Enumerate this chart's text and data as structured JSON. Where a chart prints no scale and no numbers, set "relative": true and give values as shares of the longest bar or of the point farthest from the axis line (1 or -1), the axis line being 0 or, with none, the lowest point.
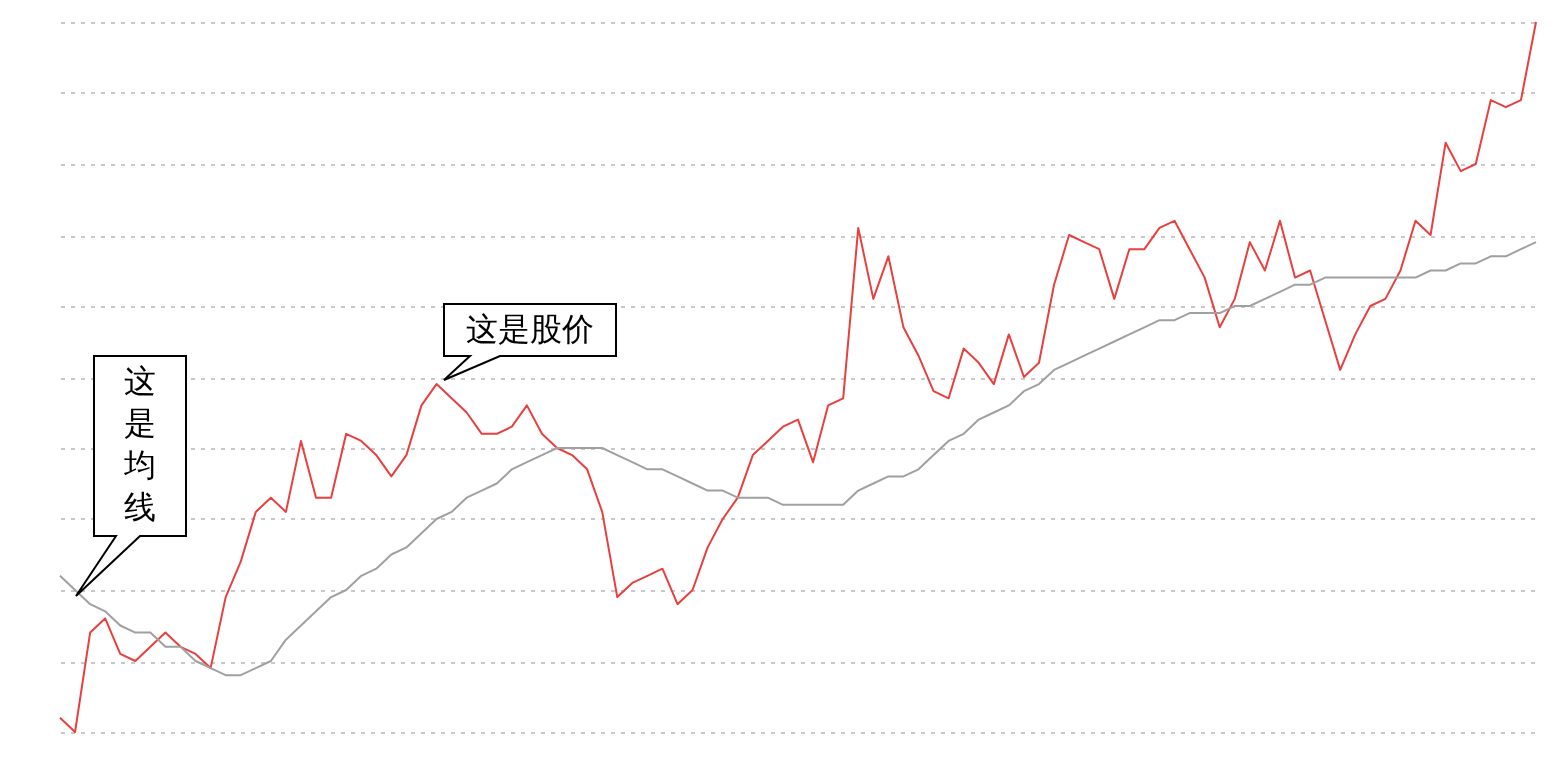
{
  "chart_data": {
    "type": "line",
    "relative": true,
    "grid": "y",
    "line_style": "solid",
    "categories": [
      null,
      null,
      null,
      null,
      null,
      null,
      null,
      null,
      null,
      null,
      null,
      null,
      null,
      null,
      null,
      null,
      null,
      null,
      null,
      null,
      null,
      null,
      null,
      null,
      null,
      null,
      null,
      null,
      null,
      null,
      null,
      null,
      null,
      null,
      null,
      null,
      null,
      null,
      null,
      null,
      null,
      null,
      null,
      null,
      null,
      null,
      null,
      null,
      null,
      null,
      null,
      null,
      null,
      null,
      null,
      null,
      null,
      null,
      null,
      null,
      null,
      null,
      null,
      null,
      null,
      null,
      null,
      null,
      null,
      null,
      null,
      null,
      null,
      null,
      null,
      null,
      null,
      null,
      null,
      null,
      null,
      null,
      null,
      null,
      null,
      null,
      null,
      null,
      null,
      null,
      null,
      null,
      null,
      null,
      null,
      null,
      null,
      null,
      null
    ],
    "series": [
      {
        "color": "#e8403f",
        "values": [
          0.02,
          0,
          0.14,
          0.16,
          0.11,
          0.1,
          0.12,
          0.14,
          0.12,
          0.11,
          0.09,
          0.19,
          0.24,
          0.31,
          0.33,
          0.31,
          0.41,
          0.33,
          0.33,
          0.42,
          0.41,
          0.39,
          0.36,
          0.39,
          0.46,
          0.49,
          0.47,
          0.45,
          0.42,
          0.42,
          0.43,
          0.46,
          0.42,
          0.4,
          0.39,
          0.37,
          0.31,
          0.19,
          0.21,
          0.22,
          0.23,
          0.18,
          0.2,
          0.26,
          0.3,
          0.33,
          0.39,
          0.41,
          0.43,
          0.44,
          0.38,
          0.46,
          0.47,
          0.71,
          0.61,
          0.67,
          0.57,
          0.53,
          0.48,
          0.47,
          0.54,
          0.52,
          0.49,
          0.56,
          0.5,
          0.52,
          0.63,
          0.7,
          0.69,
          0.68,
          0.61,
          0.68,
          0.68,
          0.71,
          0.72,
          0.68,
          0.64,
          0.57,
          0.61,
          0.69,
          0.65,
          0.72,
          0.64,
          0.65,
          0.58,
          0.51,
          0.56,
          0.6,
          0.61,
          0.65,
          0.72,
          0.7,
          0.83,
          0.79,
          0.8,
          0.89,
          0.88,
          0.89,
          1.0
        ]
      },
      {
        "color": "#a0a0a0",
        "values": [
          0.22,
          0.2,
          0.18,
          0.17,
          0.15,
          0.14,
          0.14,
          0.12,
          0.12,
          0.1,
          0.09,
          0.08,
          0.08,
          0.09,
          0.1,
          0.13,
          0.15,
          0.17,
          0.19,
          0.2,
          0.22,
          0.23,
          0.25,
          0.26,
          0.28,
          0.3,
          0.31,
          0.33,
          0.34,
          0.35,
          0.37,
          0.38,
          0.39,
          0.4,
          0.4,
          0.4,
          0.4,
          0.39,
          0.38,
          0.37,
          0.37,
          0.36,
          0.35,
          0.34,
          0.34,
          0.33,
          0.33,
          0.33,
          0.32,
          0.32,
          0.32,
          0.32,
          0.32,
          0.34,
          0.35,
          0.36,
          0.36,
          0.37,
          0.39,
          0.41,
          0.42,
          0.44,
          0.45,
          0.46,
          0.48,
          0.49,
          0.51,
          0.52,
          0.53,
          0.54,
          0.55,
          0.56,
          0.57,
          0.58,
          0.58,
          0.59,
          0.59,
          0.59,
          0.6,
          0.6,
          0.61,
          0.62,
          0.63,
          0.63,
          0.64,
          0.64,
          0.64,
          0.64,
          0.64,
          0.64,
          0.64,
          0.65,
          0.65,
          0.66,
          0.66,
          0.67,
          0.67,
          0.68,
          0.69
        ]
      }
    ],
    "annotations": [
      "这是均线",
      "这是股价"
    ]
  }
}
